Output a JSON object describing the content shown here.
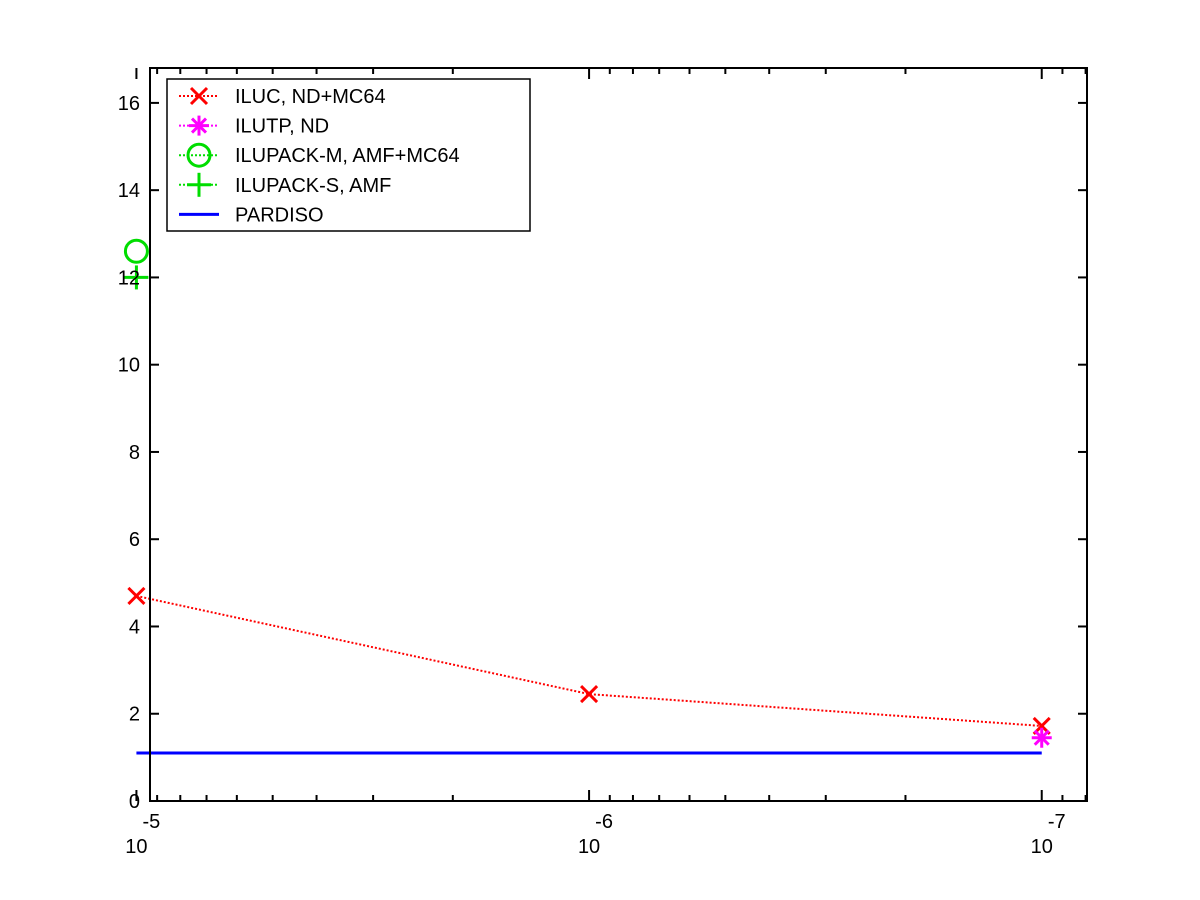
{
  "chart_data": {
    "type": "line",
    "title": "",
    "xlabel": "",
    "ylabel": "",
    "xscale": "log-reversed",
    "x": [
      1e-05,
      1e-06,
      1e-07
    ],
    "x_ticks": [
      {
        "base": "10",
        "exp": "-5"
      },
      {
        "base": "10",
        "exp": "-6"
      },
      {
        "base": "10",
        "exp": "-7"
      }
    ],
    "xlim": [
      -5.03,
      -7.1
    ],
    "ylim": [
      0,
      16.8
    ],
    "y_ticks": [
      0,
      2,
      4,
      6,
      8,
      10,
      12,
      14,
      16
    ],
    "grid": false,
    "legend_position": "top-left",
    "series": [
      {
        "name": "ILUC,  ND+MC64",
        "values": [
          4.7,
          2.45,
          1.72
        ],
        "color": "#ff0000",
        "marker": "x",
        "line": "dotted"
      },
      {
        "name": "ILUTP,  ND",
        "values": [
          null,
          null,
          1.45
        ],
        "color": "#ff00ff",
        "marker": "asterisk",
        "line": "dotted"
      },
      {
        "name": "ILUPACK-M, AMF+MC64",
        "values": [
          12.6,
          null,
          null
        ],
        "color": "#00dd00",
        "marker": "circle",
        "line": "dotted"
      },
      {
        "name": "ILUPACK-S, AMF",
        "values": [
          12.0,
          null,
          null
        ],
        "color": "#00dd00",
        "marker": "plus",
        "line": "dotted"
      },
      {
        "name": "PARDISO",
        "values": [
          1.1,
          1.1,
          1.1
        ],
        "color": "#0000ff",
        "marker": "none",
        "line": "solid"
      }
    ]
  }
}
